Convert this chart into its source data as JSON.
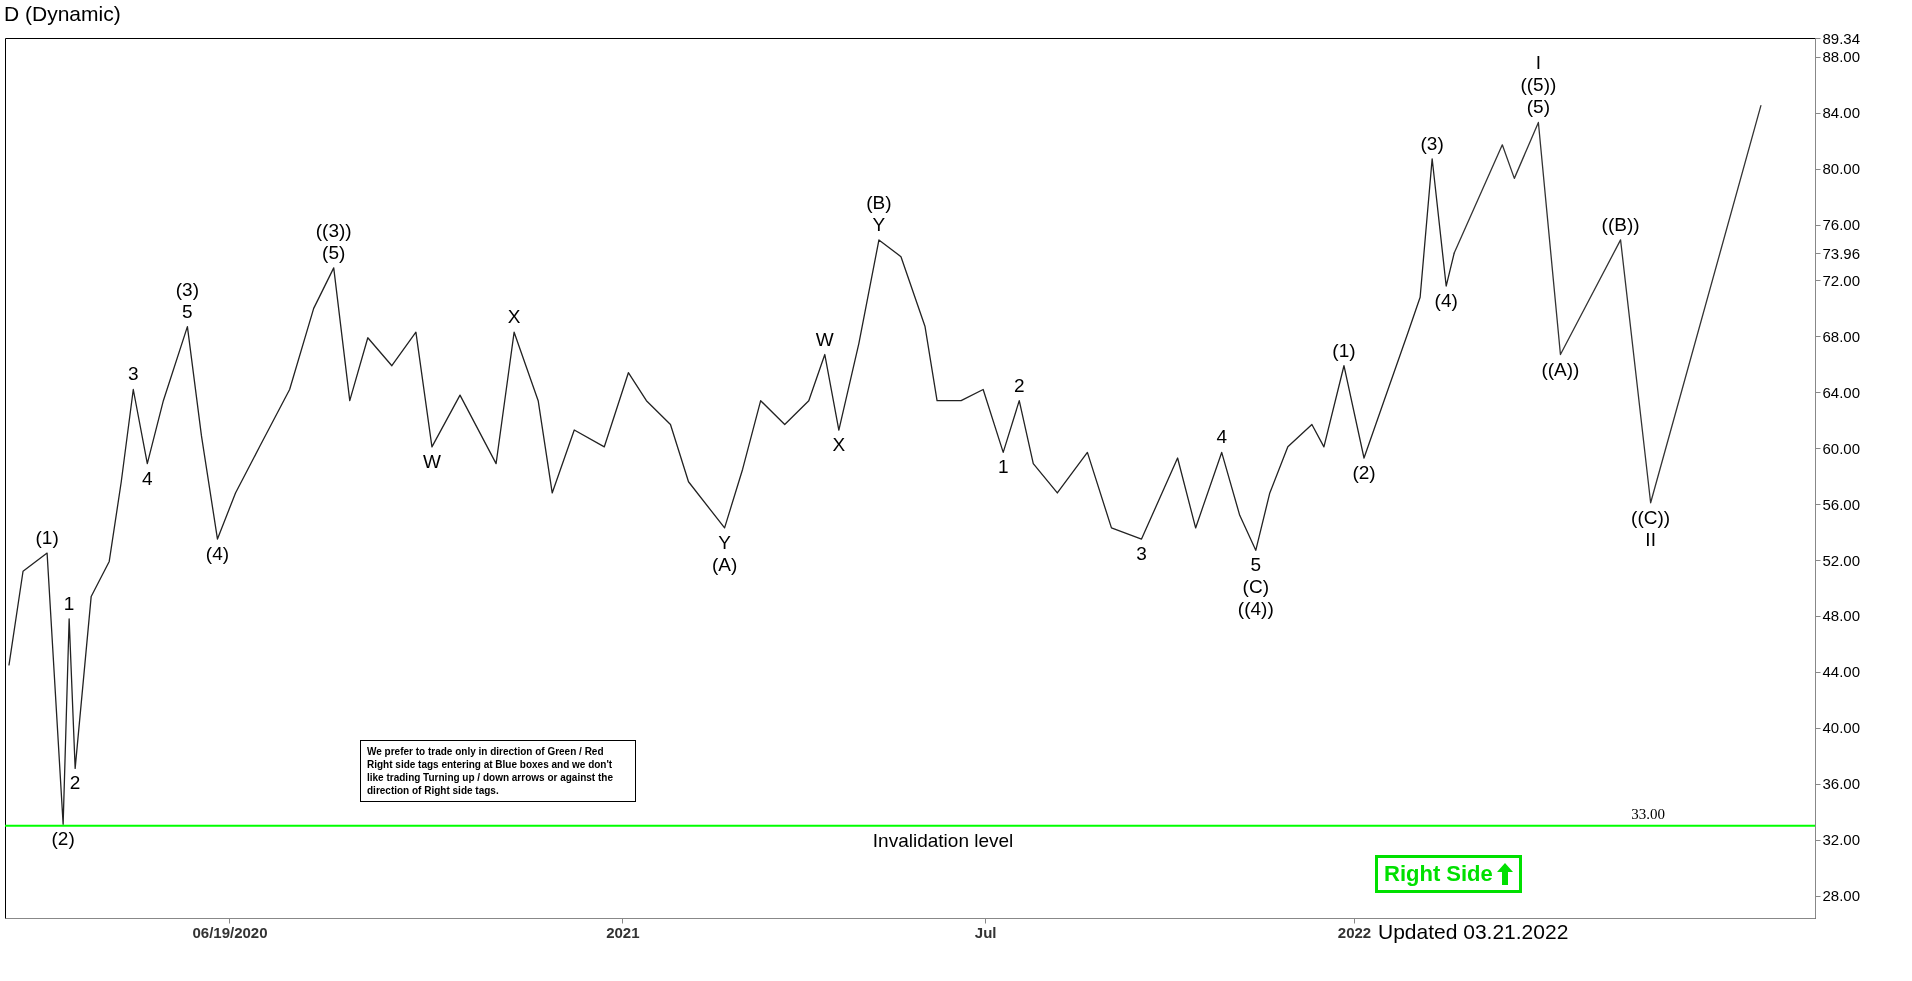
{
  "chart_data": {
    "type": "line",
    "title": "D (Dynamic)",
    "xlim": [
      "2020-02-28",
      "2022-08-19"
    ],
    "ylim": [
      26.4,
      89.34
    ],
    "xticks": [
      {
        "value": "2020-06-19",
        "label": "06/19/2020"
      },
      {
        "value": "2021-01-01",
        "label": "2021"
      },
      {
        "value": "2021-07-01",
        "label": "Jul"
      },
      {
        "value": "2022-01-01",
        "label": "2022"
      }
    ],
    "yticks": [
      {
        "value": 28,
        "label": "28.00"
      },
      {
        "value": 32,
        "label": "32.00"
      },
      {
        "value": 36,
        "label": "36.00"
      },
      {
        "value": 40,
        "label": "40.00"
      },
      {
        "value": 44,
        "label": "44.00"
      },
      {
        "value": 48,
        "label": "48.00"
      },
      {
        "value": 52,
        "label": "52.00"
      },
      {
        "value": 56,
        "label": "56.00"
      },
      {
        "value": 60,
        "label": "60.00"
      },
      {
        "value": 64,
        "label": "64.00"
      },
      {
        "value": 68,
        "label": "68.00"
      },
      {
        "value": 72,
        "label": "72.00"
      },
      {
        "value": 76,
        "label": "76.00"
      },
      {
        "value": 80,
        "label": "80.00"
      },
      {
        "value": 84,
        "label": "84.00"
      },
      {
        "value": 73.96,
        "label": "73.96"
      },
      {
        "value": 88,
        "label": "88.00"
      },
      {
        "value": 89.34,
        "label": "89.34"
      }
    ],
    "series": [
      {
        "type": "line",
        "color": "#222222",
        "x": [
          "2020-03-01",
          "2020-03-08",
          "2020-03-20",
          "2020-03-28",
          "2020-03-31",
          "2020-04-03",
          "2020-04-11",
          "2020-04-20",
          "2020-04-26",
          "2020-05-02",
          "2020-05-09",
          "2020-05-17",
          "2020-05-29",
          "2020-06-05",
          "2020-06-13",
          "2020-06-22",
          "2020-07-04",
          "2020-07-19",
          "2020-07-31",
          "2020-08-10",
          "2020-08-18",
          "2020-08-27",
          "2020-09-08",
          "2020-09-20",
          "2020-09-28",
          "2020-10-12",
          "2020-10-30",
          "2020-11-08",
          "2020-11-20",
          "2020-11-27",
          "2020-12-08",
          "2020-12-23",
          "2021-01-04",
          "2021-01-13",
          "2021-01-25",
          "2021-02-03",
          "2021-02-21",
          "2021-03-02",
          "2021-03-11",
          "2021-03-23",
          "2021-04-04",
          "2021-04-12",
          "2021-04-19",
          "2021-04-29",
          "2021-05-09",
          "2021-05-20",
          "2021-06-01",
          "2021-06-07",
          "2021-06-19",
          "2021-06-30",
          "2021-07-10",
          "2021-07-18",
          "2021-07-25",
          "2021-08-06",
          "2021-08-21",
          "2021-09-02",
          "2021-09-17",
          "2021-10-05",
          "2021-10-14",
          "2021-10-27",
          "2021-11-05",
          "2021-11-13",
          "2021-11-20",
          "2021-11-29",
          "2021-12-11",
          "2021-12-17",
          "2021-12-27",
          "2022-01-06",
          "2022-01-16",
          "2022-01-28",
          "2022-02-03",
          "2022-02-09",
          "2022-02-16",
          "2022-02-20"
        ],
        "values": [
          44.5,
          51.2,
          52.5,
          33.1,
          47.8,
          37.1,
          49.4,
          51.9,
          57.6,
          64.2,
          58.9,
          63.4,
          68.7,
          60.9,
          53.5,
          56.8,
          60.1,
          64.2,
          70.0,
          72.9,
          63.4,
          67.9,
          65.9,
          68.3,
          60.1,
          63.8,
          58.9,
          68.3,
          63.4,
          56.8,
          61.3,
          60.1,
          65.4,
          63.4,
          61.7,
          57.6,
          54.3,
          58.5,
          63.4,
          61.7,
          63.4,
          66.7,
          61.3,
          67.5,
          74.9,
          73.7,
          68.7,
          63.4,
          63.4,
          64.2,
          59.7,
          63.4,
          58.9,
          56.8,
          59.7,
          54.3,
          53.5,
          59.3,
          54.3,
          59.7,
          55.2,
          52.7,
          56.8,
          60.1,
          61.7,
          60.1,
          65.9,
          59.3,
          63.4,
          68.3,
          70.8,
          80.7,
          71.6,
          73.96
        ]
      },
      {
        "type": "line",
        "color": "#333333",
        "x": [
          "2022-02-20",
          "2022-03-16",
          "2022-03-22",
          "2022-04-03",
          "2022-04-14",
          "2022-05-14",
          "2022-05-29",
          "2022-07-23"
        ],
        "values": [
          73.96,
          81.7,
          79.3,
          83.3,
          66.7,
          74.9,
          56.1,
          84.5
        ]
      }
    ],
    "ref_lines": [
      {
        "axis": "y",
        "value": 33,
        "label": "33.00",
        "color": "#00ff00"
      }
    ],
    "annotations": [
      {
        "text": "(1)",
        "x": "2020-03-20",
        "y": 52.5
      },
      {
        "text": "1",
        "x": "2020-03-31",
        "y": 47.8
      },
      {
        "text": "2",
        "x": "2020-04-03",
        "y": 37.1
      },
      {
        "text": "(2)",
        "x": "2020-03-28",
        "y": 33.1
      },
      {
        "text": "3",
        "x": "2020-05-02",
        "y": 64.2
      },
      {
        "text": "4",
        "x": "2020-05-09",
        "y": 58.9
      },
      {
        "text": "5",
        "x": "2020-05-29",
        "y": 68.7
      },
      {
        "text": "(3)",
        "x": "2020-05-29",
        "y": 68.7
      },
      {
        "text": "(4)",
        "x": "2020-06-13",
        "y": 53.5
      },
      {
        "text": "(5)",
        "x": "2020-08-10",
        "y": 72.9
      },
      {
        "text": "((3))",
        "x": "2020-08-10",
        "y": 72.9
      },
      {
        "text": "W",
        "x": "2020-09-28",
        "y": 60.1
      },
      {
        "text": "X",
        "x": "2020-11-08",
        "y": 68.3
      },
      {
        "text": "Y",
        "x": "2021-02-21",
        "y": 54.3
      },
      {
        "text": "(A)",
        "x": "2021-02-21",
        "y": 54.3
      },
      {
        "text": "W",
        "x": "2021-04-12",
        "y": 66.7
      },
      {
        "text": "X",
        "x": "2021-04-19",
        "y": 61.3
      },
      {
        "text": "Y",
        "x": "2021-05-09",
        "y": 74.9
      },
      {
        "text": "(B)",
        "x": "2021-05-09",
        "y": 74.9
      },
      {
        "text": "1",
        "x": "2021-07-10",
        "y": 59.7
      },
      {
        "text": "2",
        "x": "2021-07-18",
        "y": 63.4
      },
      {
        "text": "3",
        "x": "2021-09-17",
        "y": 53.5
      },
      {
        "text": "4",
        "x": "2021-10-27",
        "y": 59.7
      },
      {
        "text": "5",
        "x": "2021-11-13",
        "y": 52.7
      },
      {
        "text": "(C)",
        "x": "2021-11-13",
        "y": 52.7
      },
      {
        "text": "((4))",
        "x": "2021-11-13",
        "y": 52.7
      },
      {
        "text": "(1)",
        "x": "2021-12-27",
        "y": 65.9
      },
      {
        "text": "(2)",
        "x": "2022-01-06",
        "y": 59.3
      },
      {
        "text": "(3)",
        "x": "2022-02-09",
        "y": 80.7
      },
      {
        "text": "(4)",
        "x": "2022-02-16",
        "y": 71.6
      },
      {
        "text": "(5)",
        "x": "2022-04-03",
        "y": 83.3
      },
      {
        "text": "((5))",
        "x": "2022-04-03",
        "y": 83.3
      },
      {
        "text": "I",
        "x": "2022-04-03",
        "y": 83.3
      },
      {
        "text": "((A))",
        "x": "2022-04-14",
        "y": 66.7
      },
      {
        "text": "((B))",
        "x": "2022-05-14",
        "y": 74.9
      },
      {
        "text": "((C))",
        "x": "2022-05-29",
        "y": 56.1
      },
      {
        "text": "II",
        "x": "2022-05-29",
        "y": 56.1
      },
      {
        "text": "Invalidation level",
        "x": "2021-06-10",
        "y": 33
      },
      "We prefer to trade only in direction of Green / Red Right side tags entering at Blue boxes and we don't like trading Turning up / down arrows or against the direction of Right side tags.",
      "Right Side",
      "Updated 03.21.2022"
    ]
  }
}
